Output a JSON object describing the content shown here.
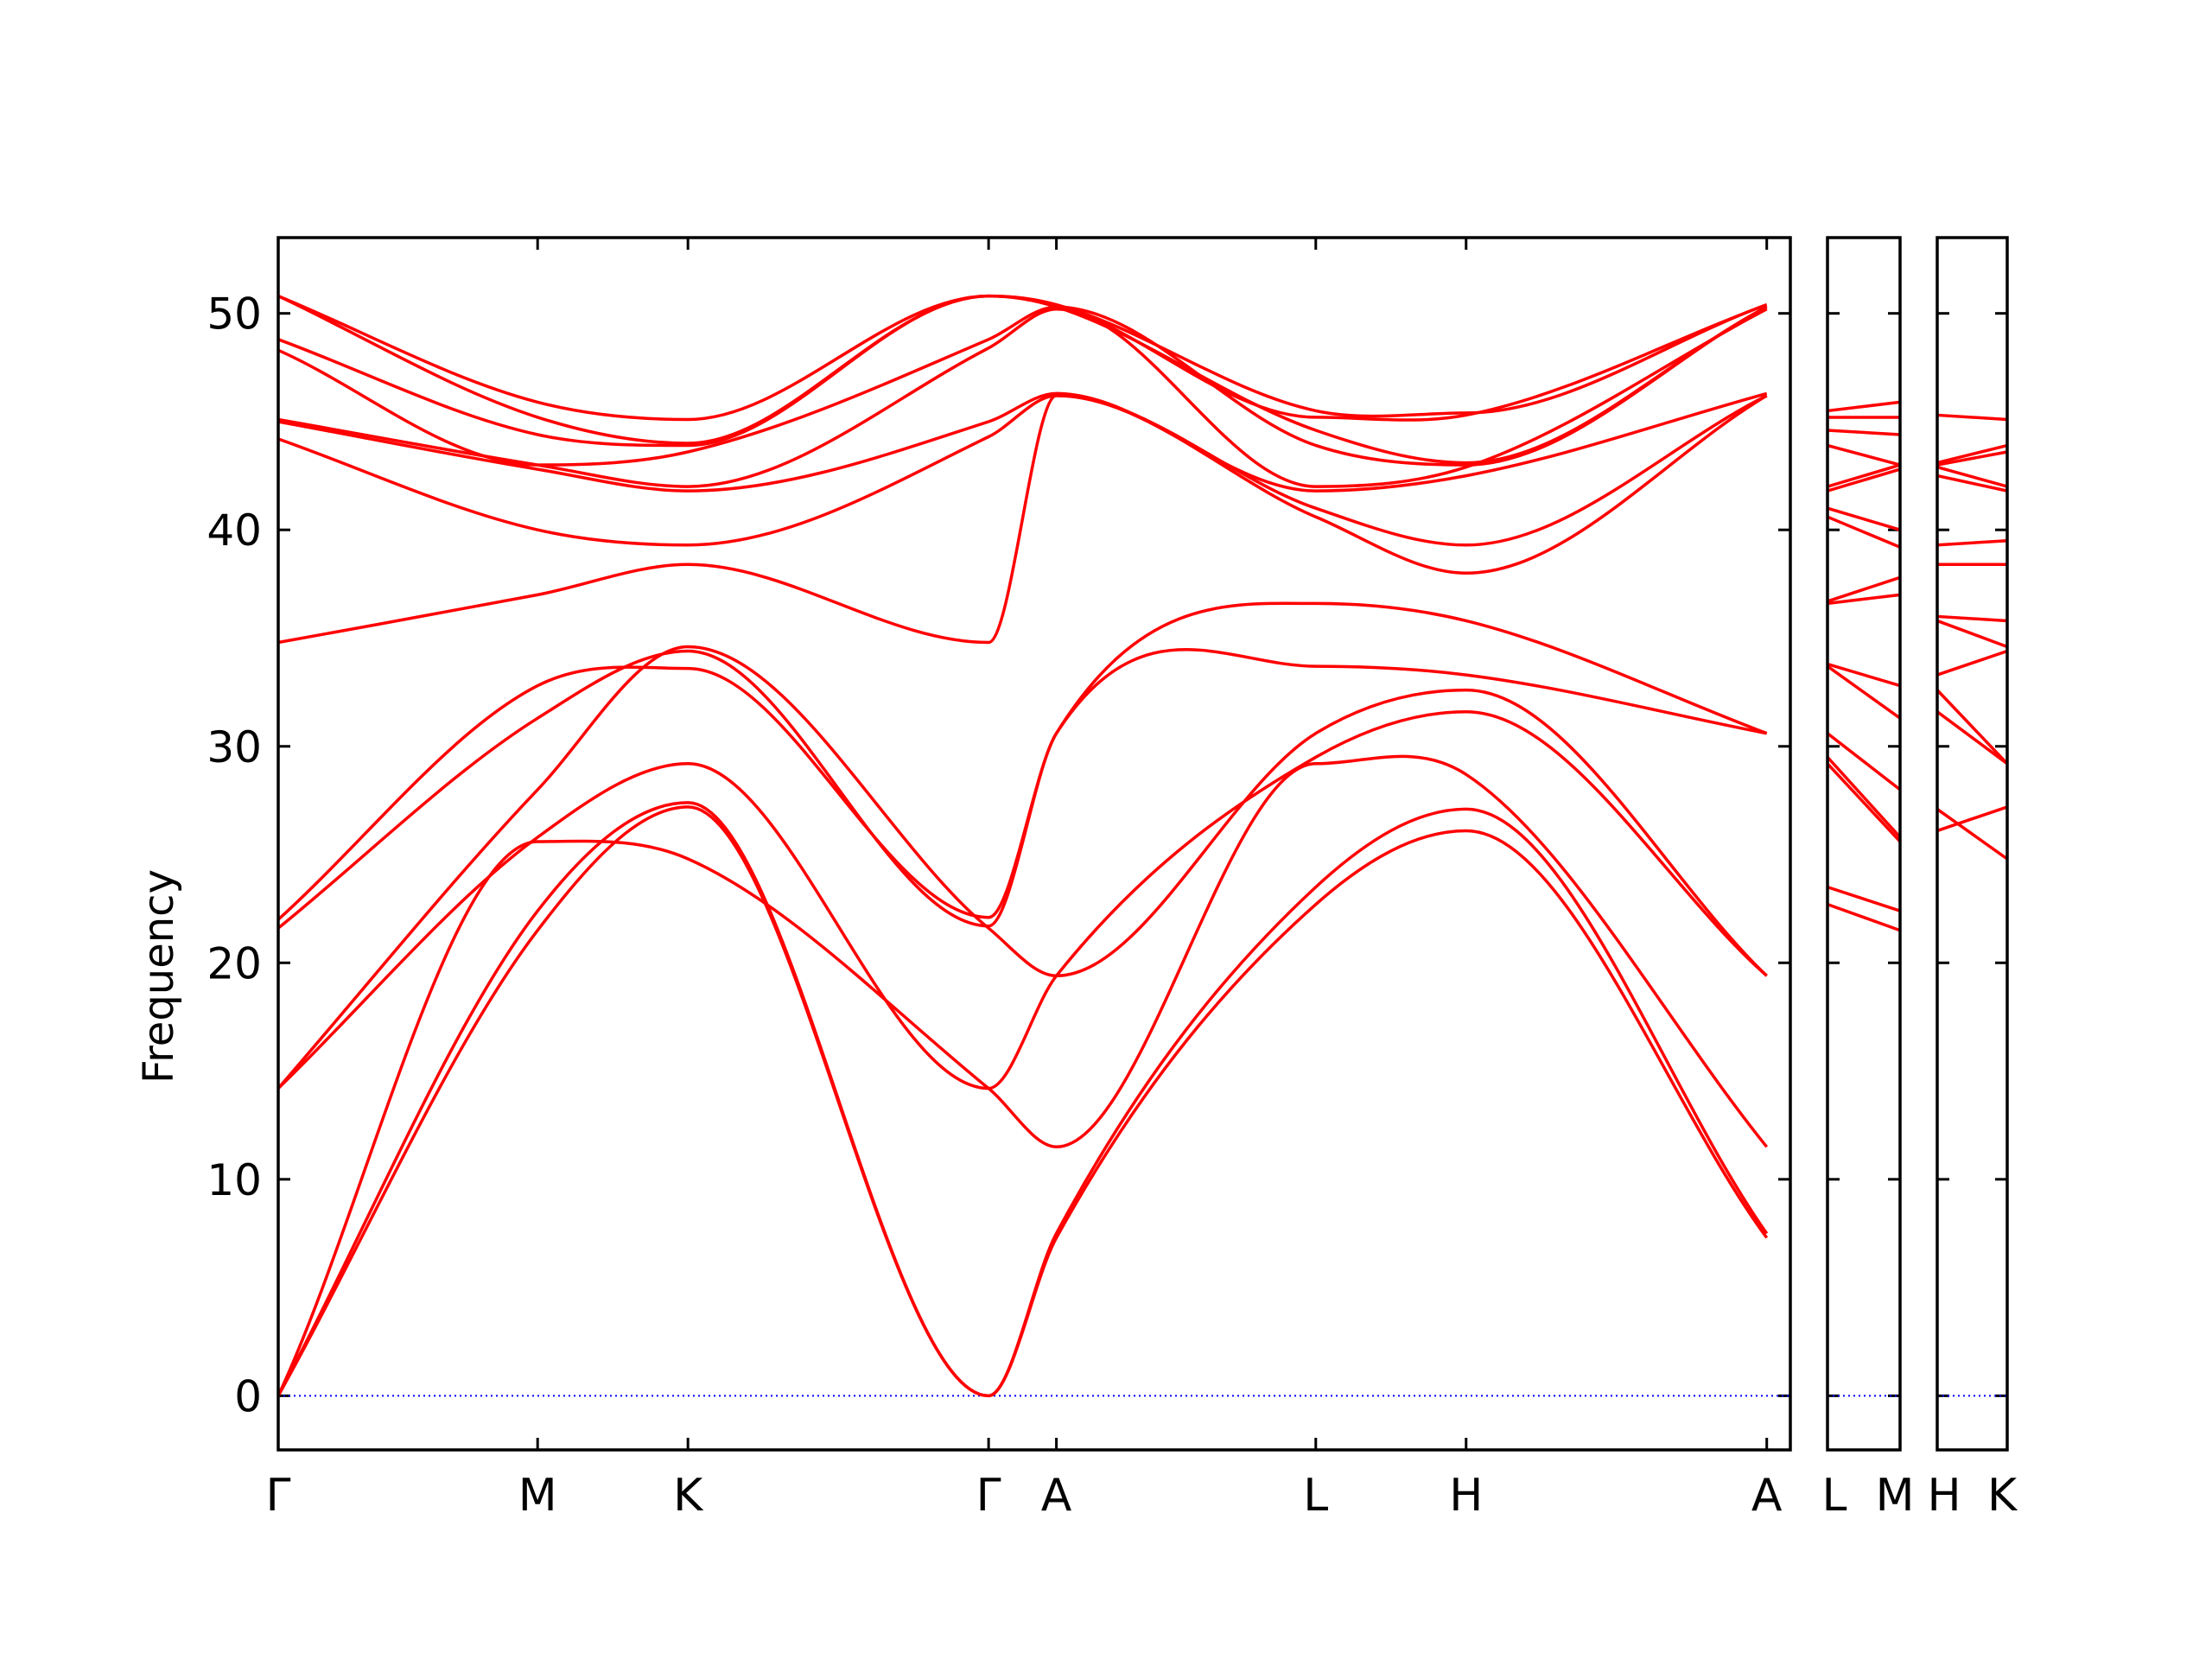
{
  "chart_data": {
    "type": "line",
    "ylabel": "Frequency",
    "ylim": [
      -2.5,
      53.5
    ],
    "yticks": [
      0,
      10,
      20,
      30,
      40,
      50
    ],
    "ytick_labels": [
      "0",
      "10",
      "20",
      "30",
      "40",
      "50"
    ],
    "zero_line": {
      "value": 0,
      "color": "#0000ff",
      "style": "dotted"
    },
    "band_color": "#ff0000",
    "panels": [
      {
        "id": "main",
        "xlim": [
          0,
          5.13
        ],
        "kpoints": [
          {
            "x": 0,
            "label": "Γ"
          },
          {
            "x": 0.88,
            "label": "M"
          },
          {
            "x": 1.39,
            "label": "K"
          },
          {
            "x": 2.41,
            "label": "Γ"
          },
          {
            "x": 2.64,
            "label": "A"
          },
          {
            "x": 3.52,
            "label": "L"
          },
          {
            "x": 4.03,
            "label": "H"
          },
          {
            "x": 5.05,
            "label": "A"
          }
        ],
        "series": [
          {
            "x": [
              0,
              0.88,
              1.39,
              2.41,
              2.64,
              3.52,
              4.03,
              5.05
            ],
            "values": [
              0,
              21.5,
              27.2,
              0,
              7.3,
              22.7,
              26.1,
              7.3
            ]
          },
          {
            "x": [
              0,
              0.88,
              1.39,
              2.41,
              2.64,
              3.52,
              4.03,
              5.05
            ],
            "values": [
              0,
              22.4,
              27.4,
              0,
              7.5,
              23.5,
              27.1,
              7.5
            ]
          },
          {
            "x": [
              0,
              0.88,
              1.39,
              2.41,
              2.64,
              3.52,
              4.03,
              5.05
            ],
            "values": [
              0,
              25.6,
              24.8,
              14.2,
              11.5,
              29.2,
              28.7,
              11.5
            ]
          },
          {
            "x": [
              0,
              0.88,
              1.39,
              2.41,
              2.64,
              3.52,
              4.03,
              5.05
            ],
            "values": [
              14.2,
              25.8,
              29.2,
              14.2,
              19.4,
              29.5,
              31.6,
              19.4
            ]
          },
          {
            "x": [
              0,
              0.88,
              1.39,
              2.41,
              2.64,
              3.52,
              4.03,
              5.05
            ],
            "values": [
              14.2,
              28.0,
              34.6,
              21.6,
              19.4,
              30.6,
              32.6,
              19.4
            ]
          },
          {
            "x": [
              0,
              0.88,
              1.39,
              2.41,
              2.64,
              3.52,
              4.03,
              5.05
            ],
            "values": [
              21.6,
              31.3,
              34.4,
              21.7,
              30.6,
              33.7,
              33.3,
              30.6
            ]
          },
          {
            "x": [
              0,
              0.88,
              1.39,
              2.41,
              2.64,
              3.52,
              4.03,
              5.05
            ],
            "values": [
              22.0,
              32.8,
              33.6,
              22.1,
              30.6,
              36.6,
              35.8,
              30.6
            ]
          },
          {
            "x": [
              0,
              0.88,
              1.39,
              2.41,
              2.64,
              3.52,
              4.03,
              5.05
            ],
            "values": [
              34.8,
              37.0,
              38.4,
              34.8,
              46.2,
              40.6,
              38.0,
              46.2
            ]
          },
          {
            "x": [
              0,
              0.88,
              1.39,
              2.41,
              2.64,
              3.52,
              4.03,
              5.05
            ],
            "values": [
              44.2,
              40.0,
              39.3,
              44.3,
              46.2,
              41.0,
              39.3,
              46.2
            ]
          },
          {
            "x": [
              0,
              0.88,
              1.39,
              2.41,
              2.64,
              3.52,
              4.03,
              5.05
            ],
            "values": [
              45.0,
              42.8,
              41.8,
              45.0,
              46.3,
              41.8,
              42.5,
              46.3
            ]
          },
          {
            "x": [
              0,
              0.88,
              1.39,
              2.41,
              2.64,
              3.52,
              4.03,
              5.05
            ],
            "values": [
              45.1,
              43.0,
              42.0,
              48.4,
              50.2,
              42.0,
              42.9,
              50.2
            ]
          },
          {
            "x": [
              0,
              0.88,
              1.39,
              2.41,
              2.64,
              3.52,
              4.03,
              5.05
            ],
            "values": [
              48.3,
              43.0,
              43.6,
              48.8,
              50.3,
              43.9,
              43.0,
              50.3
            ]
          },
          {
            "x": [
              0,
              0.88,
              1.39,
              2.41,
              2.64,
              3.52,
              4.03,
              5.05
            ],
            "values": [
              48.8,
              44.4,
              43.9,
              50.8,
              50.3,
              44.6,
              43.1,
              50.3
            ]
          },
          {
            "x": [
              0,
              0.88,
              1.39,
              2.41,
              2.64,
              3.52,
              4.03,
              5.05
            ],
            "values": [
              50.8,
              45.2,
              44.0,
              50.8,
              50.4,
              45.2,
              45.3,
              50.4
            ]
          },
          {
            "x": [
              0,
              0.88,
              1.39,
              2.41,
              2.64,
              3.52,
              4.03,
              5.05
            ],
            "values": [
              50.8,
              45.9,
              45.1,
              50.8,
              50.4,
              45.5,
              45.4,
              50.4
            ]
          }
        ]
      },
      {
        "id": "LM",
        "xlim": [
          0,
          1
        ],
        "kpoints": [
          {
            "x": 0,
            "label": "L"
          },
          {
            "x": 1,
            "label": "M"
          }
        ],
        "series": [
          {
            "x": [
              0,
              1
            ],
            "values": [
              22.7,
              21.5
            ]
          },
          {
            "x": [
              0,
              1
            ],
            "values": [
              23.5,
              22.4
            ]
          },
          {
            "x": [
              0,
              1
            ],
            "values": [
              29.2,
              25.6
            ]
          },
          {
            "x": [
              0,
              1
            ],
            "values": [
              29.5,
              25.8
            ]
          },
          {
            "x": [
              0,
              1
            ],
            "values": [
              30.6,
              28.0
            ]
          },
          {
            "x": [
              0,
              1
            ],
            "values": [
              33.7,
              31.3
            ]
          },
          {
            "x": [
              0,
              1
            ],
            "values": [
              33.8,
              32.8
            ]
          },
          {
            "x": [
              0,
              1
            ],
            "values": [
              36.6,
              37.0
            ]
          },
          {
            "x": [
              0,
              1
            ],
            "values": [
              36.7,
              37.8
            ]
          },
          {
            "x": [
              0,
              1
            ],
            "values": [
              40.6,
              39.2
            ]
          },
          {
            "x": [
              0,
              1
            ],
            "values": [
              41.0,
              40.0
            ]
          },
          {
            "x": [
              0,
              1
            ],
            "values": [
              41.8,
              42.8
            ]
          },
          {
            "x": [
              0,
              1
            ],
            "values": [
              42.0,
              43.0
            ]
          },
          {
            "x": [
              0,
              1
            ],
            "values": [
              43.9,
              43.0
            ]
          },
          {
            "x": [
              0,
              1
            ],
            "values": [
              44.6,
              44.4
            ]
          },
          {
            "x": [
              0,
              1
            ],
            "values": [
              45.2,
              45.2
            ]
          },
          {
            "x": [
              0,
              1
            ],
            "values": [
              45.5,
              45.9
            ]
          }
        ]
      },
      {
        "id": "HK",
        "xlim": [
          0,
          1
        ],
        "kpoints": [
          {
            "x": 0,
            "label": "H"
          },
          {
            "x": 1,
            "label": "K"
          }
        ],
        "series": [
          {
            "x": [
              0,
              1
            ],
            "values": [
              26.1,
              27.2
            ]
          },
          {
            "x": [
              0,
              1
            ],
            "values": [
              27.1,
              24.8
            ]
          },
          {
            "x": [
              0,
              1
            ],
            "values": [
              31.6,
              29.2
            ]
          },
          {
            "x": [
              0,
              1
            ],
            "values": [
              32.6,
              29.2
            ]
          },
          {
            "x": [
              0,
              1
            ],
            "values": [
              33.3,
              34.4
            ]
          },
          {
            "x": [
              0,
              1
            ],
            "values": [
              35.8,
              34.6
            ]
          },
          {
            "x": [
              0,
              1
            ],
            "values": [
              36.0,
              35.8
            ]
          },
          {
            "x": [
              0,
              1
            ],
            "values": [
              38.4,
              38.4
            ]
          },
          {
            "x": [
              0,
              1
            ],
            "values": [
              39.3,
              39.5
            ]
          },
          {
            "x": [
              0,
              1
            ],
            "values": [
              42.5,
              41.8
            ]
          },
          {
            "x": [
              0,
              1
            ],
            "values": [
              42.9,
              42.0
            ]
          },
          {
            "x": [
              0,
              1
            ],
            "values": [
              43.0,
              43.6
            ]
          },
          {
            "x": [
              0,
              1
            ],
            "values": [
              43.1,
              43.9
            ]
          },
          {
            "x": [
              0,
              1
            ],
            "values": [
              45.3,
              45.1
            ]
          }
        ]
      }
    ]
  }
}
